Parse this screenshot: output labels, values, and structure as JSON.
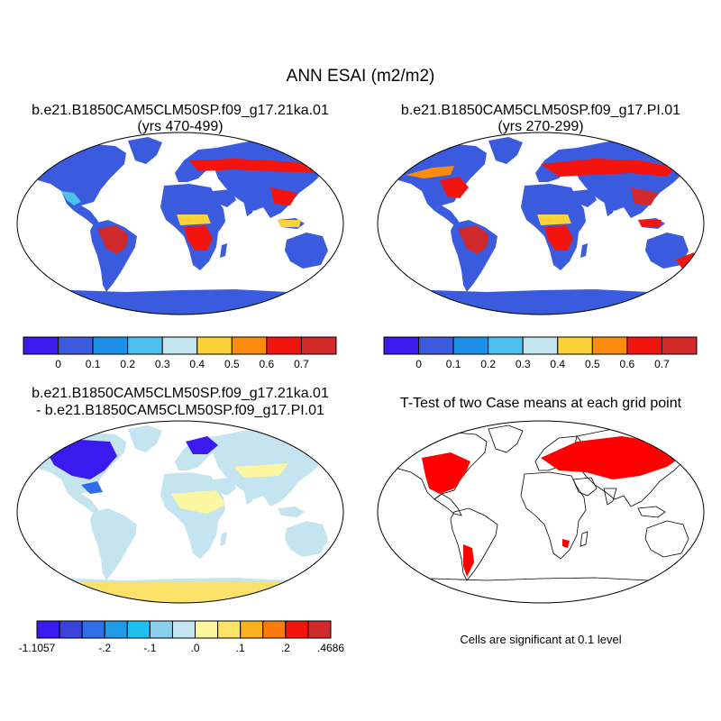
{
  "title": "ANN ESAI (m2/m2)",
  "panels": [
    {
      "title_line1": "b.e21.B1850CAM5CLM50SP.f09_g17.21ka.01",
      "title_line2": "(yrs 470-499)"
    },
    {
      "title_line1": "b.e21.B1850CAM5CLM50SP.f09_g17.PI.01",
      "title_line2": "(yrs 270-299)"
    },
    {
      "title_line1": "b.e21.B1850CAM5CLM50SP.f09_g17.21ka.01",
      "title_line2": "- b.e21.B1850CAM5CLM50SP.f09_g17.PI.01"
    },
    {
      "title_line1": "T-Test of two Case means at each grid point"
    }
  ],
  "colorbar_abs": {
    "colors": [
      "#3a1aee",
      "#3a5bde",
      "#1e8fe6",
      "#4ec0ee",
      "#c4e4f0",
      "#fbd23a",
      "#fb8c0e",
      "#f4140e",
      "#d22a2a"
    ],
    "labels": [
      "0",
      "0.1",
      "0.2",
      "0.3",
      "0.4",
      "0.5",
      "0.6",
      "0.7"
    ]
  },
  "colorbar_diff": {
    "colors": [
      "#3a1aee",
      "#3a42de",
      "#2f6ee6",
      "#1e9ae6",
      "#1ec0f0",
      "#8ad0ee",
      "#c4e4f0",
      "#fdf6a0",
      "#fde26a",
      "#fbb01e",
      "#fb7a0e",
      "#f4140e",
      "#d22a2a"
    ],
    "labels": [
      "-1.1057",
      "-.2",
      "-.1",
      ".0",
      ".1",
      ".2",
      ".4686"
    ]
  },
  "significance_color": "#ff0000",
  "note": "Cells are significant at 0.1 level"
}
